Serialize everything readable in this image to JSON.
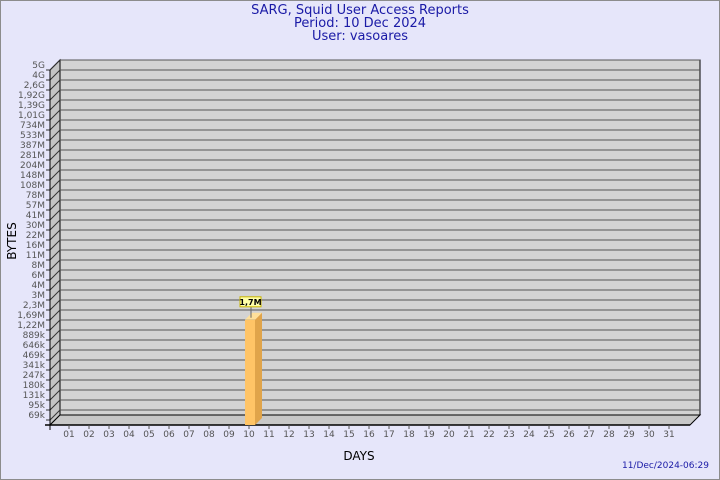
{
  "chart_data": {
    "type": "bar",
    "title": "SARG, Squid User Access Reports",
    "subtitle_lines": [
      "Period: 10 Dec 2024",
      "User: vasoares"
    ],
    "xlabel": "DAYS",
    "ylabel": "BYTES",
    "y_scale": "log",
    "y_tick_labels": [
      "5G",
      "4G",
      "2,6G",
      "1,92G",
      "1,39G",
      "1,01G",
      "734M",
      "533M",
      "387M",
      "281M",
      "204M",
      "148M",
      "108M",
      "78M",
      "57M",
      "41M",
      "30M",
      "22M",
      "16M",
      "11M",
      "8M",
      "6M",
      "4M",
      "3M",
      "2,3M",
      "1,69M",
      "1,22M",
      "889k",
      "646k",
      "469k",
      "341k",
      "247k",
      "180k",
      "131k",
      "95k",
      "69k"
    ],
    "categories": [
      "01",
      "02",
      "03",
      "04",
      "05",
      "06",
      "07",
      "08",
      "09",
      "10",
      "11",
      "12",
      "13",
      "14",
      "15",
      "16",
      "17",
      "18",
      "19",
      "20",
      "21",
      "22",
      "23",
      "24",
      "25",
      "26",
      "27",
      "28",
      "29",
      "30",
      "31"
    ],
    "series": [
      {
        "values": [
          {
            "day": "10",
            "value": 1700000,
            "label": "1,7M"
          }
        ]
      }
    ],
    "grid": true,
    "colors": {
      "bar_front": "#ffc466",
      "bar_side": "#e0a44a",
      "bar_top": "#ffe09a",
      "wall": "#d3d3d3",
      "background": "#e6e6fa",
      "title": "#1a1aa6"
    }
  },
  "footer": {
    "timestamp": "11/Dec/2024-06:29"
  }
}
